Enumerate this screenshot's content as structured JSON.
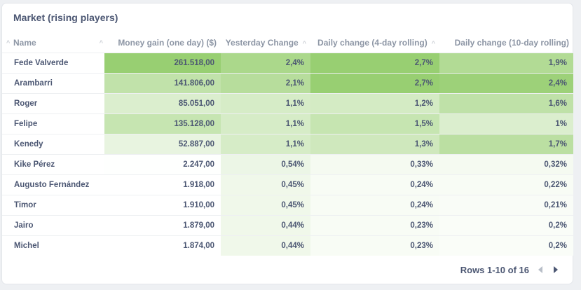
{
  "card": {
    "title": "Market (rising players)"
  },
  "table": {
    "columns": [
      "Name",
      "Money gain (one day) ($)",
      "Yesterday Change",
      "Daily change (4-day rolling)",
      "Daily change (10-day rolling)"
    ],
    "rows": [
      [
        "Fede Valverde",
        "261.518,00",
        "2,4%",
        "2,7%",
        "1,9%"
      ],
      [
        "Arambarri",
        "141.806,00",
        "2,1%",
        "2,7%",
        "2,4%"
      ],
      [
        "Roger",
        "85.051,00",
        "1,1%",
        "1,2%",
        "1,6%"
      ],
      [
        "Felipe",
        "135.128,00",
        "1,1%",
        "1,5%",
        "1%"
      ],
      [
        "Kenedy",
        "52.887,00",
        "1,1%",
        "1,3%",
        "1,7%"
      ],
      [
        "Kike Pérez",
        "2.247,00",
        "0,54%",
        "0,33%",
        "0,32%"
      ],
      [
        "Augusto Fernández",
        "1.918,00",
        "0,45%",
        "0,24%",
        "0,22%"
      ],
      [
        "Timor",
        "1.910,00",
        "0,45%",
        "0,24%",
        "0,21%"
      ],
      [
        "Jairo",
        "1.879,00",
        "0,44%",
        "0,23%",
        "0,2%"
      ],
      [
        "Michel",
        "1.874,00",
        "0,44%",
        "0,23%",
        "0,2%"
      ]
    ],
    "heat": [
      [
        1.0,
        0.82,
        1.0,
        0.75
      ],
      [
        0.6,
        0.7,
        1.0,
        0.95
      ],
      [
        0.35,
        0.4,
        0.42,
        0.62
      ],
      [
        0.55,
        0.4,
        0.55,
        0.35
      ],
      [
        0.22,
        0.4,
        0.47,
        0.66
      ],
      [
        0.01,
        0.18,
        0.1,
        0.1
      ],
      [
        0.0,
        0.15,
        0.07,
        0.07
      ],
      [
        0.0,
        0.15,
        0.07,
        0.06
      ],
      [
        0.0,
        0.15,
        0.07,
        0.05
      ],
      [
        0.0,
        0.15,
        0.07,
        0.05
      ]
    ],
    "heat_colors": {
      "low": "#ffffff",
      "high": "#98cf72"
    }
  },
  "footer": {
    "rows_label": "Rows 1-10 of 16",
    "prev_icon": "chevron-left-icon",
    "next_icon": "chevron-right-icon"
  }
}
